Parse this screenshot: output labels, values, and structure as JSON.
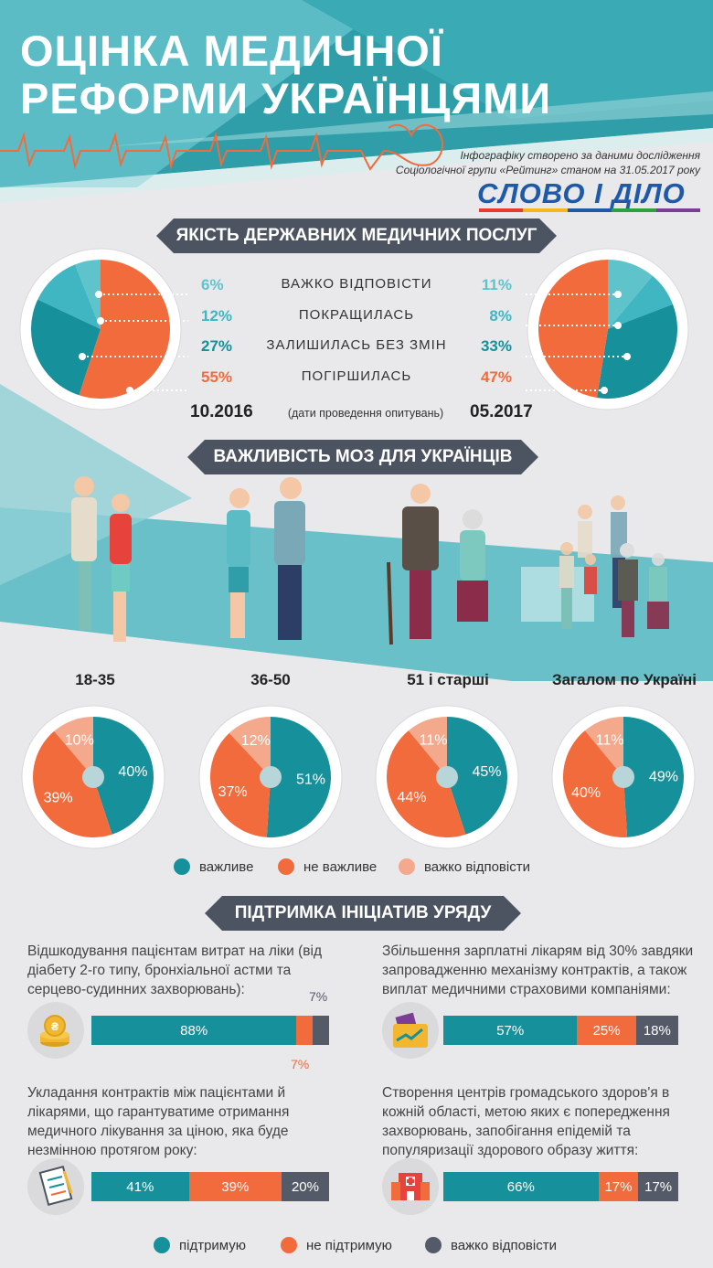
{
  "header": {
    "title_line1": "ОЦІНКА МЕДИЧНОЇ",
    "title_line2": "РЕФОРМИ УКРАЇНЦЯМИ",
    "source_line1": "Інфографіку створено за даними дослідження",
    "source_line2": "Соціологічної групи «Рейтинг» станом на 31.05.2017 року",
    "logo": "СЛОВО І ДІЛО"
  },
  "colors": {
    "teal": "#16909a",
    "light_teal": "#3fb6c1",
    "orange": "#f26b3d",
    "light_orange": "#f4a88c",
    "dark_grey": "#545a67",
    "banner": "#4d5461"
  },
  "section1": {
    "title": "ЯКІСТЬ ДЕРЖАВНИХ МЕДИЧНИХ ПОСЛУГ",
    "dates_note": "(дати проведення опитувань)",
    "rows": [
      {
        "label": "ВАЖКО ВІДПОВІСТИ",
        "left": "6%",
        "right": "11%"
      },
      {
        "label": "ПОКРАЩИЛАСЬ",
        "left": "12%",
        "right": "8%"
      },
      {
        "label": "ЗАЛИШИЛАСЬ БЕЗ ЗМІН",
        "left": "27%",
        "right": "33%"
      },
      {
        "label": "ПОГІРШИЛАСЬ",
        "left": "55%",
        "right": "47%"
      }
    ],
    "date_left": "10.2016",
    "date_right": "05.2017"
  },
  "section2": {
    "title": "ВАЖЛИВІСТЬ МОЗ ДЛЯ УКРАЇНЦІВ",
    "groups": [
      "18-35",
      "36-50",
      "51 і старші",
      "Загалом по Україні"
    ],
    "legend": [
      "важливе",
      "не важливе",
      "важко відповісти"
    ]
  },
  "section3": {
    "title": "ПІДТРИМКА ІНІЦІАТИВ УРЯДУ",
    "items": [
      {
        "text": "Відшкодування пацієнтам витрат на ліки (від діабету 2-го типу, бронхіальної астми та серцево-судинних захворювань):",
        "labels": [
          "88%",
          "",
          ""
        ],
        "annot_top": "7%",
        "annot_bottom": "7%"
      },
      {
        "text": "Збільшення зарплатні лікарям від 30% завдяки запровадженню механізму контрактів, а також виплат медичними страховими компаніями:",
        "labels": [
          "57%",
          "25%",
          "18%"
        ]
      },
      {
        "text": "Укладання контрактів між пацієнтами й лікарями, що гарантуватиме отримання медичного лікування за ціною, яка буде незмінною протягом року:",
        "labels": [
          "41%",
          "39%",
          "20%"
        ]
      },
      {
        "text": "Створення центрів громадського здоров'я в кожній області, метою яких є попередження захворювань, запобігання епідемій та популяризації здорового образу життя:",
        "labels": [
          "66%",
          "17%",
          "17%"
        ]
      }
    ],
    "legend": [
      "підтримую",
      "не підтримую",
      "важко відповісти"
    ]
  },
  "chart_data": [
    {
      "type": "pie",
      "title": "10.2016",
      "categories": [
        "Важко відповісти",
        "Покращилась",
        "Залишилась без змін",
        "Погіршилась"
      ],
      "values": [
        6,
        12,
        27,
        55
      ]
    },
    {
      "type": "pie",
      "title": "05.2017",
      "categories": [
        "Важко відповісти",
        "Покращилась",
        "Залишилась без змін",
        "Погіршилась"
      ],
      "values": [
        11,
        8,
        33,
        47
      ]
    },
    {
      "type": "pie",
      "title": "18-35",
      "categories": [
        "важливе",
        "не важливе",
        "важко відповісти"
      ],
      "values": [
        40,
        39,
        10
      ]
    },
    {
      "type": "pie",
      "title": "36-50",
      "categories": [
        "важливе",
        "не важливе",
        "важко відповісти"
      ],
      "values": [
        51,
        37,
        12
      ]
    },
    {
      "type": "pie",
      "title": "51 і старші",
      "categories": [
        "важливе",
        "не важливе",
        "важко відповісти"
      ],
      "values": [
        45,
        44,
        11
      ]
    },
    {
      "type": "pie",
      "title": "Загалом по Україні",
      "categories": [
        "важливе",
        "не важливе",
        "важко відповісти"
      ],
      "values": [
        49,
        40,
        11
      ]
    },
    {
      "type": "bar",
      "categories": [
        "Відшкодування пацієнтам витрат на ліки",
        "Збільшення зарплатні лікарям",
        "Укладання контрактів між пацієнтами й лікарями",
        "Створення центрів громадського здоров'я"
      ],
      "series": [
        {
          "name": "підтримую",
          "values": [
            88,
            57,
            41,
            66
          ]
        },
        {
          "name": "не підтримую",
          "values": [
            7,
            25,
            39,
            17
          ]
        },
        {
          "name": "важко відповісти",
          "values": [
            7,
            18,
            20,
            17
          ]
        }
      ]
    }
  ]
}
